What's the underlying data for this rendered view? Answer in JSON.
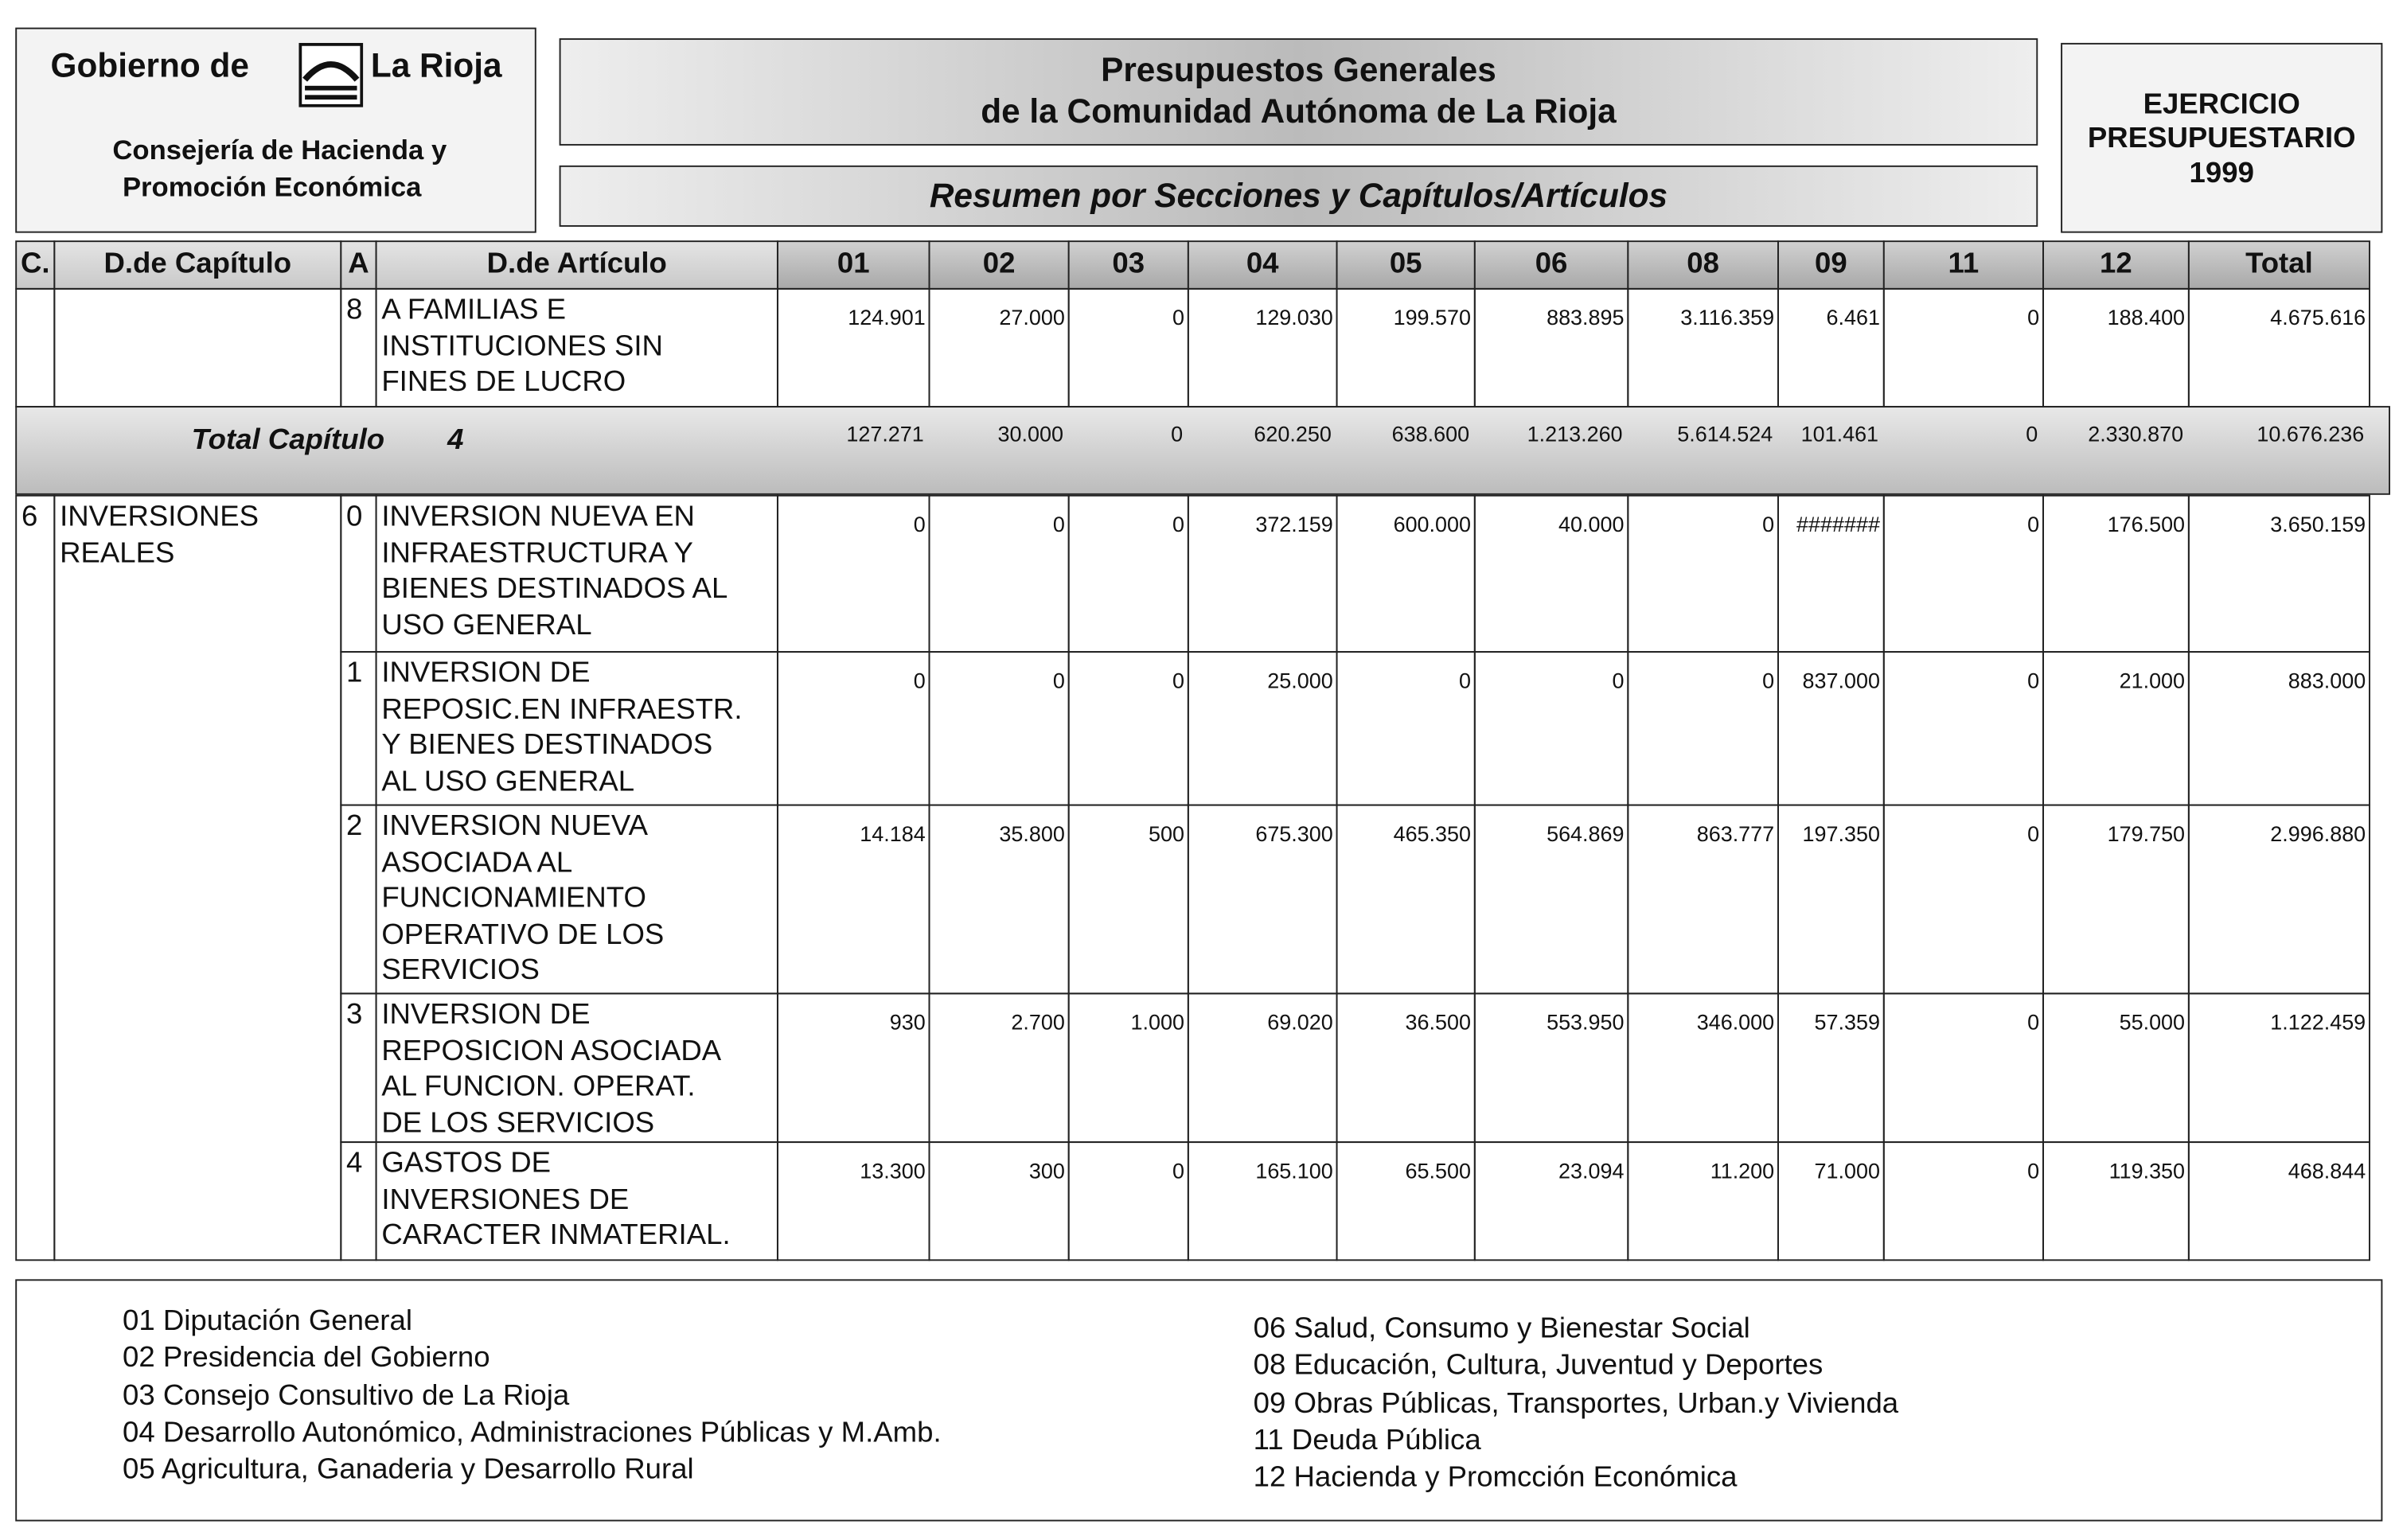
{
  "header": {
    "org": [
      "Gobierno de",
      "La Rioja"
    ],
    "department": [
      "Consejería de Hacienda y",
      "Promoción Económica"
    ],
    "title": [
      "Presupuestos Generales",
      "de la Comunidad Autónoma de La Rioja"
    ],
    "subtitle": "Resumen por Secciones y Capítulos/Artículos",
    "exercise": [
      "EJERCICIO",
      "PRESUPUESTARIO",
      "1999"
    ]
  },
  "table": {
    "columns": [
      "C.",
      "D.de Capítulo",
      "A",
      "D.de Artículo",
      "01",
      "02",
      "03",
      "04",
      "05",
      "06",
      "08",
      "09",
      "11",
      "12",
      "Total"
    ],
    "first_rows": [
      {
        "article": "8",
        "description": [
          "A FAMILIAS E",
          "INSTITUCIONES SIN",
          "FINES DE LUCRO"
        ],
        "values": [
          "124.901",
          "27.000",
          "0",
          "129.030",
          "199.570",
          "883.895",
          "3.116.359",
          "6.461",
          "0",
          "188.400",
          "4.675.616"
        ]
      }
    ],
    "total": {
      "label": "Total Capítulo",
      "chapter": "4",
      "values": [
        "127.271",
        "30.000",
        "0",
        "620.250",
        "638.600",
        "1.213.260",
        "5.614.524",
        "101.461",
        "0",
        "2.330.870",
        "10.676.236"
      ]
    },
    "chapter": {
      "code": "6",
      "name": [
        "INVERSIONES",
        "REALES"
      ],
      "rows": [
        {
          "article": "0",
          "description": [
            "INVERSION NUEVA EN",
            "INFRAESTRUCTURA Y",
            "BIENES DESTINADOS AL",
            "USO GENERAL"
          ],
          "values": [
            "0",
            "0",
            "0",
            "372.159",
            "600.000",
            "40.000",
            "0",
            "#######",
            "0",
            "176.500",
            "3.650.159"
          ]
        },
        {
          "article": "1",
          "description": [
            "INVERSION DE",
            "REPOSIC.EN INFRAESTR.",
            "Y BIENES DESTINADOS",
            "AL USO GENERAL"
          ],
          "values": [
            "0",
            "0",
            "0",
            "25.000",
            "0",
            "0",
            "0",
            "837.000",
            "0",
            "21.000",
            "883.000"
          ]
        },
        {
          "article": "2",
          "description": [
            "INVERSION NUEVA",
            "ASOCIADA AL",
            "FUNCIONAMIENTO",
            "OPERATIVO DE LOS",
            "SERVICIOS"
          ],
          "values": [
            "14.184",
            "35.800",
            "500",
            "675.300",
            "465.350",
            "564.869",
            "863.777",
            "197.350",
            "0",
            "179.750",
            "2.996.880"
          ]
        },
        {
          "article": "3",
          "description": [
            "INVERSION DE",
            "REPOSICION ASOCIADA",
            "AL FUNCION. OPERAT.",
            "DE LOS SERVICIOS"
          ],
          "values": [
            "930",
            "2.700",
            "1.000",
            "69.020",
            "36.500",
            "553.950",
            "346.000",
            "57.359",
            "0",
            "55.000",
            "1.122.459"
          ]
        },
        {
          "article": "4",
          "description": [
            "GASTOS DE",
            "INVERSIONES DE",
            "CARACTER INMATERIAL."
          ],
          "values": [
            "13.300",
            "300",
            "0",
            "165.100",
            "65.500",
            "23.094",
            "11.200",
            "71.000",
            "0",
            "119.350",
            "468.844"
          ]
        }
      ]
    }
  },
  "legend": {
    "left": [
      "01 Diputación General",
      "02 Presidencia del Gobierno",
      "03 Consejo Consultivo de La Rioja",
      "04 Desarrollo Autonómico, Administraciones Públicas y M.Amb.",
      "05 Agricultura, Ganaderia y Desarrollo Rural"
    ],
    "right": [
      "06 Salud, Consumo y Bienestar Social",
      "08 Educación, Cultura, Juventud y Deportes",
      "09 Obras Públicas, Transportes, Urban.y Vivienda",
      "11 Deuda Pública",
      "12 Hacienda y Promcción Económica"
    ]
  }
}
